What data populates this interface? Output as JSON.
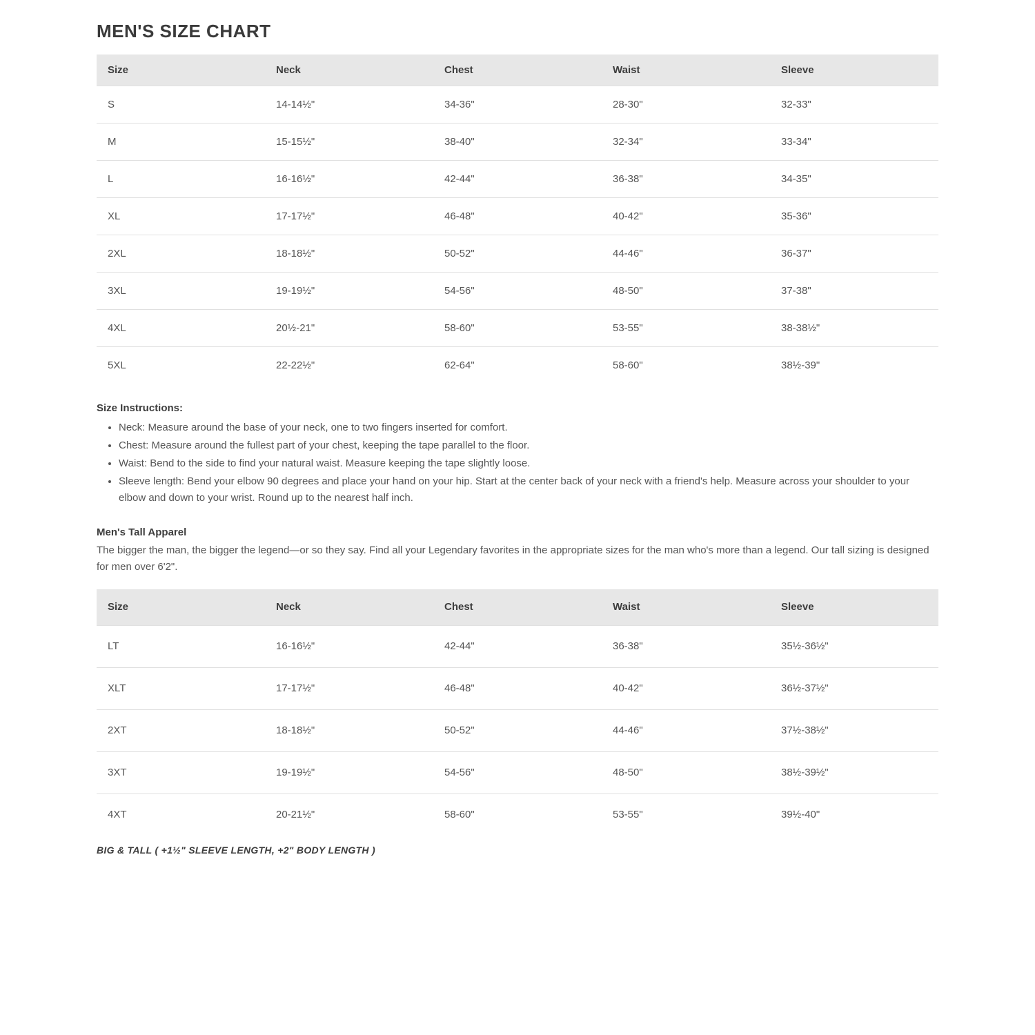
{
  "title": "MEN'S SIZE CHART",
  "columns": [
    "Size",
    "Neck",
    "Chest",
    "Waist",
    "Sleeve"
  ],
  "main_table": {
    "type": "table",
    "header_bg": "#e7e7e7",
    "border_color": "#e0e0e0",
    "text_color": "#555555",
    "header_text_color": "#3d3d3d",
    "rows": [
      [
        "S",
        "14-14½\"",
        "34-36\"",
        "28-30\"",
        "32-33\""
      ],
      [
        "M",
        "15-15½\"",
        "38-40\"",
        "32-34\"",
        "33-34\""
      ],
      [
        "L",
        "16-16½\"",
        "42-44\"",
        "36-38\"",
        "34-35\""
      ],
      [
        "XL",
        "17-17½\"",
        "46-48\"",
        "40-42\"",
        "35-36\""
      ],
      [
        "2XL",
        "18-18½\"",
        "50-52\"",
        "44-46\"",
        "36-37\""
      ],
      [
        "3XL",
        "19-19½\"",
        "54-56\"",
        "48-50\"",
        "37-38\""
      ],
      [
        "4XL",
        "20½-21\"",
        "58-60\"",
        "53-55\"",
        "38-38½\""
      ],
      [
        "5XL",
        "22-22½\"",
        "62-64\"",
        "58-60\"",
        "38½-39\""
      ]
    ]
  },
  "instructions": {
    "title": "Size Instructions:",
    "items": [
      "Neck: Measure around the base of your neck, one to two fingers inserted for comfort.",
      "Chest: Measure around the fullest part of your chest, keeping the tape parallel to the floor.",
      "Waist: Bend to the side to find your natural waist. Measure keeping the tape slightly loose.",
      "Sleeve length: Bend your elbow 90 degrees and place your hand on your hip. Start at the center back of your neck with a friend's help. Measure across your shoulder to your elbow and down to your wrist. Round up to the nearest half inch."
    ]
  },
  "tall": {
    "title": "Men's Tall Apparel",
    "description": "The bigger the man, the bigger the legend—or so they say. Find all your Legendary favorites in the appropriate sizes for the man who's more than a legend. Our tall sizing is designed for men over 6'2\"."
  },
  "tall_table": {
    "type": "table",
    "header_bg": "#e7e7e7",
    "border_color": "#e0e0e0",
    "text_color": "#555555",
    "header_text_color": "#3d3d3d",
    "rows": [
      [
        "LT",
        "16-16½\"",
        "42-44\"",
        "36-38\"",
        "35½-36½\""
      ],
      [
        "XLT",
        "17-17½\"",
        "46-48\"",
        "40-42\"",
        "36½-37½\""
      ],
      [
        "2XT",
        "18-18½\"",
        "50-52\"",
        "44-46\"",
        "37½-38½\""
      ],
      [
        "3XT",
        "19-19½\"",
        "54-56\"",
        "48-50\"",
        "38½-39½\""
      ],
      [
        "4XT",
        "20-21½\"",
        "58-60\"",
        "53-55\"",
        "39½-40\""
      ]
    ]
  },
  "footnote": "BIG & TALL ( +1½\" SLEEVE LENGTH, +2\" BODY LENGTH )"
}
